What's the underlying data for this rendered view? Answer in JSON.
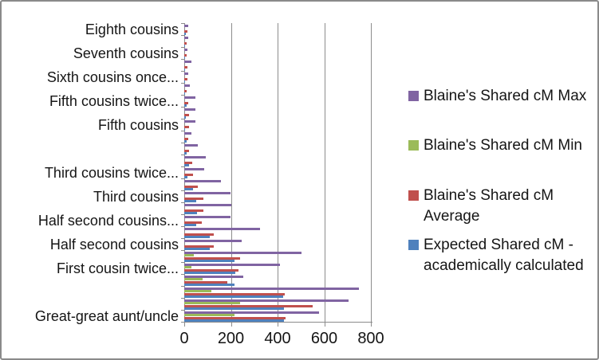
{
  "chart_data": {
    "type": "bar",
    "orientation": "horizontal",
    "title": "",
    "xlabel": "",
    "ylabel": "",
    "xlim": [
      0,
      800
    ],
    "x_ticks": [
      0,
      200,
      400,
      600,
      800
    ],
    "x_tick_labels": [
      "0",
      "200",
      "400",
      "600",
      "800"
    ],
    "grid": true,
    "legend_position": "right",
    "categories": [
      "Eighth cousins",
      "",
      "Seventh cousins",
      "",
      "Sixth cousins once...",
      "",
      "Fifth cousins twice...",
      "",
      "Fifth cousins",
      "",
      "",
      "",
      "Third cousins twice...",
      "",
      "Third cousins",
      "",
      "Half second cousins...",
      "",
      "Half second cousins",
      "",
      "First cousin twice...",
      "",
      "",
      "",
      "Great-great aunt/uncle"
    ],
    "series": [
      {
        "name": "Blaine's Shared cM Max",
        "color": "#8064A2",
        "values": [
          18,
          16,
          14,
          31,
          17,
          24,
          47,
          49,
          49,
          32,
          57,
          92,
          86,
          157,
          197,
          200,
          197,
          324,
          245,
          503,
          410,
          253,
          750,
          703,
          578
        ]
      },
      {
        "name": "Blaine's Shared cM Min",
        "color": "#9BBB59",
        "values": [
          0,
          0,
          0,
          0,
          0,
          0,
          0,
          0,
          0,
          0,
          0,
          0,
          0,
          0,
          0,
          0,
          0,
          0,
          0,
          41,
          32,
          80,
          115,
          240,
          216
        ]
      },
      {
        "name": "Blaine's Shared cM Average",
        "color": "#C0504D",
        "values": [
          14,
          11,
          11,
          13,
          13,
          11,
          17,
          20,
          20,
          17,
          20,
          34,
          37,
          57,
          83,
          81,
          74,
          128,
          125,
          239,
          234,
          185,
          432,
          552,
          435
        ]
      },
      {
        "name": "Expected Shared cM - academically calculated",
        "color": "#4F81BD",
        "values": [
          6,
          5,
          3,
          2,
          2,
          3,
          9,
          7,
          3,
          9,
          11,
          20,
          15,
          37,
          52,
          55,
          52,
          109,
          109,
          214,
          219,
          214,
          425,
          427,
          427
        ]
      }
    ],
    "colors": {
      "gridline": "#8c8c8c",
      "axis": "#8c8c8c",
      "text": "#151515",
      "background": "#ffffff",
      "border": "#8a8a8a"
    }
  }
}
